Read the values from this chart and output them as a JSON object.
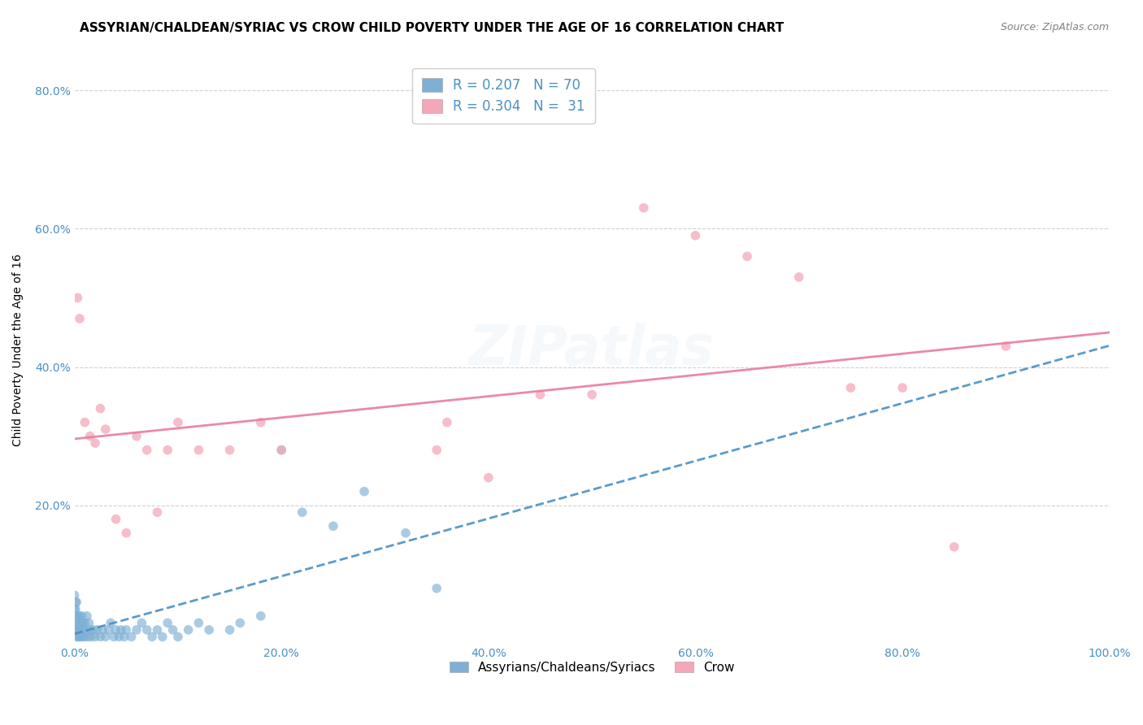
{
  "title": "ASSYRIAN/CHALDEAN/SYRIAC VS CROW CHILD POVERTY UNDER THE AGE OF 16 CORRELATION CHART",
  "source": "Source: ZipAtlas.com",
  "ylabel": "Child Poverty Under the Age of 16",
  "watermark": "ZIPatlas",
  "legend_label1": "Assyrians/Chaldeans/Syriacs",
  "legend_label2": "Crow",
  "R1": 0.207,
  "N1": 70,
  "R2": 0.304,
  "N2": 31,
  "color_blue": "#7EB0D5",
  "color_pink": "#F4A7B9",
  "line_color_blue": "#4A90C4",
  "line_color_pink": "#E87CA0",
  "background_color": "#FFFFFF",
  "grid_color": "#CCCCCC",
  "xlim": [
    0.0,
    1.0
  ],
  "ylim": [
    0.0,
    0.85
  ],
  "blue_x": [
    0.0,
    0.0,
    0.0,
    0.001,
    0.001,
    0.001,
    0.001,
    0.002,
    0.002,
    0.002,
    0.002,
    0.003,
    0.003,
    0.003,
    0.004,
    0.004,
    0.005,
    0.005,
    0.005,
    0.006,
    0.006,
    0.007,
    0.007,
    0.008,
    0.008,
    0.009,
    0.01,
    0.01,
    0.011,
    0.012,
    0.013,
    0.014,
    0.015,
    0.016,
    0.018,
    0.02,
    0.022,
    0.025,
    0.027,
    0.03,
    0.033,
    0.035,
    0.038,
    0.04,
    0.043,
    0.045,
    0.048,
    0.05,
    0.055,
    0.06,
    0.065,
    0.07,
    0.075,
    0.08,
    0.085,
    0.09,
    0.095,
    0.1,
    0.11,
    0.12,
    0.13,
    0.15,
    0.16,
    0.18,
    0.2,
    0.22,
    0.25,
    0.28,
    0.32,
    0.35
  ],
  "blue_y": [
    0.03,
    0.05,
    0.07,
    0.02,
    0.03,
    0.05,
    0.06,
    0.01,
    0.02,
    0.04,
    0.06,
    0.01,
    0.02,
    0.04,
    0.02,
    0.03,
    0.01,
    0.02,
    0.04,
    0.01,
    0.03,
    0.02,
    0.04,
    0.01,
    0.03,
    0.02,
    0.01,
    0.03,
    0.02,
    0.04,
    0.01,
    0.03,
    0.02,
    0.01,
    0.02,
    0.01,
    0.02,
    0.01,
    0.02,
    0.01,
    0.02,
    0.03,
    0.01,
    0.02,
    0.01,
    0.02,
    0.01,
    0.02,
    0.01,
    0.02,
    0.03,
    0.02,
    0.01,
    0.02,
    0.01,
    0.03,
    0.02,
    0.01,
    0.02,
    0.03,
    0.02,
    0.02,
    0.03,
    0.04,
    0.28,
    0.19,
    0.17,
    0.22,
    0.16,
    0.08
  ],
  "pink_x": [
    0.003,
    0.005,
    0.01,
    0.015,
    0.02,
    0.025,
    0.03,
    0.04,
    0.05,
    0.06,
    0.07,
    0.08,
    0.09,
    0.1,
    0.12,
    0.15,
    0.18,
    0.2,
    0.35,
    0.36,
    0.4,
    0.45,
    0.5,
    0.55,
    0.6,
    0.65,
    0.7,
    0.75,
    0.8,
    0.85,
    0.9
  ],
  "pink_y": [
    0.5,
    0.47,
    0.32,
    0.3,
    0.29,
    0.34,
    0.31,
    0.18,
    0.16,
    0.3,
    0.28,
    0.19,
    0.28,
    0.32,
    0.28,
    0.28,
    0.32,
    0.28,
    0.28,
    0.32,
    0.24,
    0.36,
    0.36,
    0.63,
    0.59,
    0.56,
    0.53,
    0.37,
    0.37,
    0.14,
    0.43
  ],
  "xtick_labels": [
    "0.0%",
    "20.0%",
    "40.0%",
    "60.0%",
    "80.0%",
    "100.0%"
  ],
  "xtick_vals": [
    0.0,
    0.2,
    0.4,
    0.6,
    0.8,
    1.0
  ],
  "ytick_labels": [
    "20.0%",
    "40.0%",
    "60.0%",
    "80.0%"
  ],
  "ytick_vals": [
    0.2,
    0.4,
    0.6,
    0.8
  ],
  "title_fontsize": 11,
  "axis_label_fontsize": 10,
  "tick_fontsize": 10,
  "legend_fontsize": 12,
  "watermark_fontsize": 48,
  "watermark_alpha": 0.13,
  "marker_size": 70
}
